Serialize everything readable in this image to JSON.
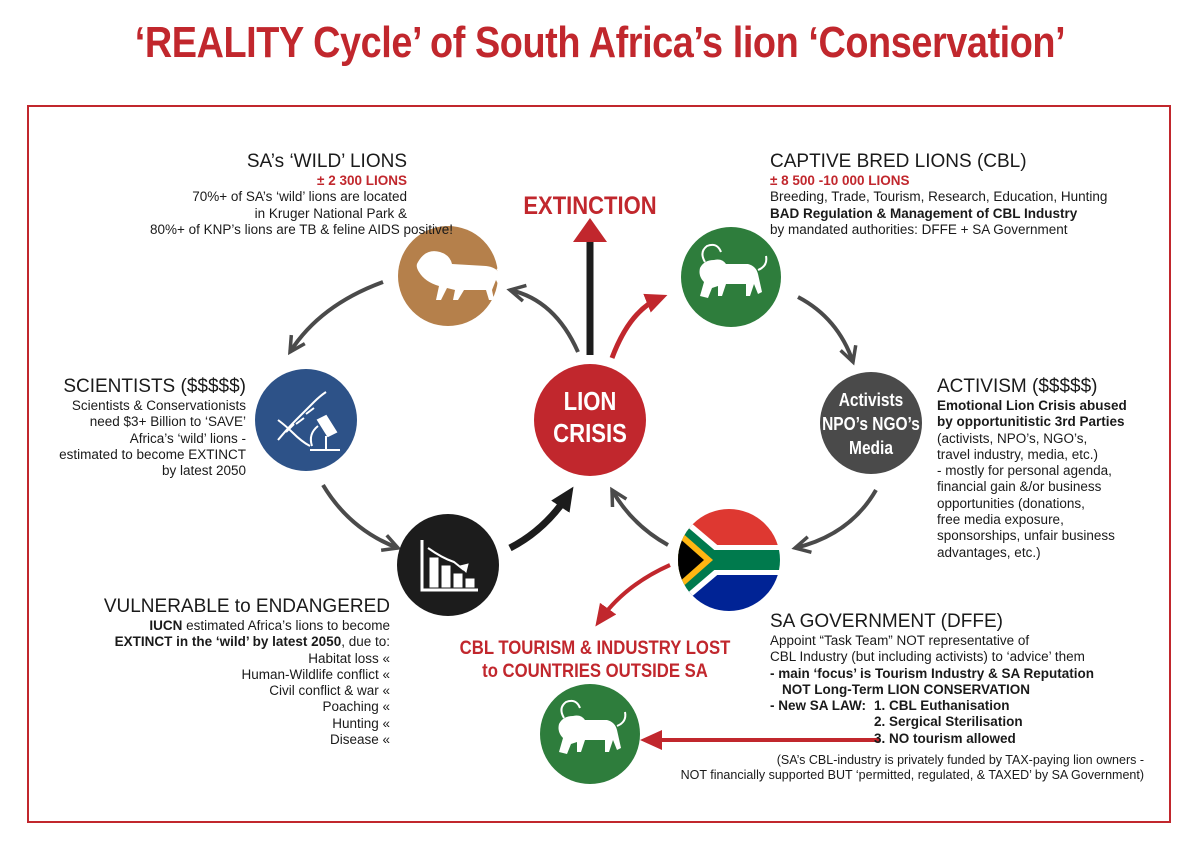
{
  "title": "‘REALITY Cycle’ of South Africa’s lion ‘Conservation’",
  "center": {
    "line1": "LION",
    "line2": "CRISIS"
  },
  "extinction_label": "EXTINCTION",
  "wild_lions": {
    "heading": "SA’s ‘WILD’ LIONS",
    "count": "± 2 300 LIONS",
    "lines": [
      "70%+ of SA’s ‘wild’ lions are located",
      "in Kruger National Park &",
      "80%+ of KNP’s lions are TB & feline AIDS positive!"
    ]
  },
  "captive_lions": {
    "heading": "CAPTIVE BRED LIONS (CBL)",
    "count": "± 8 500 -10 000 LIONS",
    "line1": "Breeding, Trade, Tourism, Research, Education, Hunting",
    "line2_bold": "BAD Regulation & Management of CBL Industry",
    "line3": "by mandated authorities: DFFE + SA Government"
  },
  "scientists": {
    "heading": "SCIENTISTS ($$$$$)",
    "lines": [
      "Scientists & Conservationists",
      "need $3+ Billion to ‘SAVE’",
      "Africa’s ‘wild’ lions -",
      "estimated to become EXTINCT",
      "by latest 2050"
    ]
  },
  "activism": {
    "heading": "ACTIVISM ($$$$$)",
    "bold_lines": [
      "Emotional Lion Crisis abused",
      "by opportunitistic 3rd Parties"
    ],
    "lines": [
      "(activists, NPO’s, NGO’s,",
      "travel industry, media, etc.)",
      "- mostly for personal agenda,",
      "financial gain &/or business",
      "opportunities (donations,",
      "free media exposure,",
      " sponsorships, unfair business",
      "advantages, etc.)"
    ]
  },
  "activists_circle": {
    "line1": "Activists",
    "line2": "NPO’s NGO’s",
    "line3": "Media"
  },
  "vulnerable": {
    "heading": "VULNERABLE to ENDANGERED",
    "line1_bold": "IUCN",
    "line1_rest": " estimated Africa’s lions to become",
    "line2_bold": "EXTINCT in the ‘wild’ by latest 2050",
    "line2_rest": ", due to:",
    "causes": [
      "Habitat loss «",
      "Human-Wildlife conflict «",
      "Civil conflict & war «",
      "Poaching «",
      "Hunting «",
      "Disease «"
    ]
  },
  "cbl_lost": {
    "line1": "CBL TOURISM & INDUSTRY LOST",
    "line2": "to COUNTRIES OUTSIDE SA"
  },
  "government": {
    "heading": "SA GOVERNMENT (DFFE)",
    "line1": "Appoint “Task Team” NOT representative of",
    "line2": "CBL Industry (but including activists) to ‘advice’ them",
    "line3_bold": "- main ‘focus’ is Tourism Industry & SA Reputation",
    "line4_bold": "NOT Long-Term LION CONSERVATION",
    "law_label": "- New SA LAW:",
    "law_items": [
      "1. CBL Euthanisation",
      "2. Sergical Sterilisation",
      "3. NO tourism allowed"
    ]
  },
  "footnote": {
    "line1": "(SA’s CBL-industry is privately funded by TAX-paying lion owners -",
    "line2": "NOT financially supported BUT ‘permitted, regulated, & TAXED’ by SA Government)"
  },
  "colors": {
    "red": "#c1272d",
    "brown": "#b5804b",
    "green": "#2e7d3c",
    "blue": "#2d5288",
    "black": "#1c1c1c",
    "grey": "#4a4a4a"
  },
  "icons": {
    "wild": "lion-silhouette-icon",
    "captive": "lion-emblem-icon",
    "scientists": "dna-microscope-icon",
    "vulnerable": "declining-chart-icon",
    "government": "south-africa-flag-icon",
    "lost": "lion-emblem-icon"
  }
}
